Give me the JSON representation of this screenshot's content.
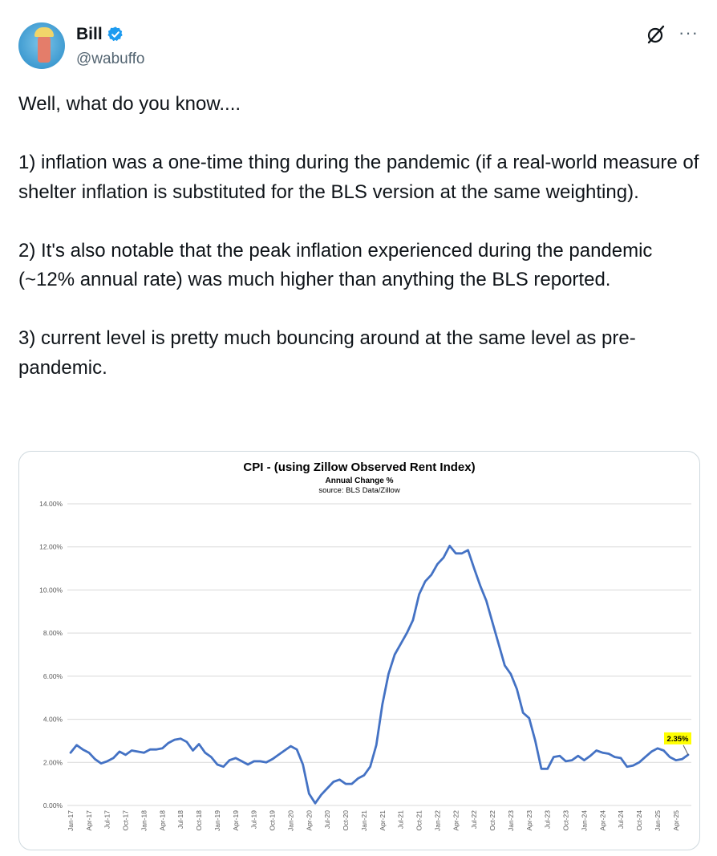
{
  "author": {
    "name": "Bill",
    "handle": "@wabuffo",
    "verified": true,
    "verified_color": "#1d9bf0"
  },
  "toolbar": {
    "grok_icon": "grok-icon",
    "more_label": "···"
  },
  "tweet": {
    "paragraphs": [
      "Well, what do you know....",
      "1) inflation was a one-time thing during the pandemic (if a real-world measure of shelter inflation is substituted for the BLS version at the same weighting).",
      "2) It's also notable that the peak inflation experienced during the pandemic (~12% annual rate) was much higher than anything the BLS reported.",
      "3) current level is pretty much bouncing around at the same level as pre-pandemic."
    ]
  },
  "chart_data": {
    "type": "line",
    "title": "CPI - (using Zillow Observed Rent Index)",
    "subtitle": "Annual Change %",
    "source": "source: BLS Data/Zillow",
    "y_ticks": [
      "0.00%",
      "2.00%",
      "4.00%",
      "6.00%",
      "8.00%",
      "10.00%",
      "12.00%",
      "14.00%"
    ],
    "ylim": [
      0,
      14
    ],
    "x_ticks": [
      "Jan-17",
      "Apr-17",
      "Jul-17",
      "Oct-17",
      "Jan-18",
      "Apr-18",
      "Jul-18",
      "Oct-18",
      "Jan-19",
      "Apr-19",
      "Jul-19",
      "Oct-19",
      "Jan-20",
      "Apr-20",
      "Jul-20",
      "Oct-20",
      "Jan-21",
      "Apr-21",
      "Jul-21",
      "Oct-21",
      "Jan-22",
      "Apr-22",
      "Jul-22",
      "Oct-22",
      "Jan-23",
      "Apr-23",
      "Jul-23",
      "Oct-23",
      "Jan-24",
      "Apr-24",
      "Jul-24",
      "Oct-24",
      "Jan-25",
      "Apr-25"
    ],
    "grid": true,
    "line_color": "#4472c4",
    "label_color": "#ffff00",
    "last_value_label": "2.35%",
    "values": [
      2.45,
      2.8,
      2.6,
      2.45,
      2.15,
      1.95,
      2.05,
      2.2,
      2.5,
      2.35,
      2.55,
      2.5,
      2.45,
      2.6,
      2.6,
      2.65,
      2.9,
      3.05,
      3.1,
      2.95,
      2.55,
      2.85,
      2.45,
      2.25,
      1.9,
      1.8,
      2.1,
      2.2,
      2.05,
      1.9,
      2.05,
      2.05,
      2.0,
      2.15,
      2.35,
      2.55,
      2.75,
      2.6,
      1.9,
      0.55,
      0.1,
      0.5,
      0.8,
      1.1,
      1.2,
      1.0,
      1.0,
      1.25,
      1.4,
      1.8,
      2.8,
      4.7,
      6.1,
      7.0,
      7.5,
      8.0,
      8.6,
      9.8,
      10.4,
      10.7,
      11.2,
      11.5,
      12.05,
      11.7,
      11.7,
      11.85,
      11.0,
      10.2,
      9.5,
      8.5,
      7.5,
      6.5,
      6.1,
      5.4,
      4.3,
      4.05,
      3.0,
      1.7,
      1.7,
      2.25,
      2.3,
      2.05,
      2.1,
      2.3,
      2.1,
      2.3,
      2.55,
      2.45,
      2.4,
      2.25,
      2.2,
      1.8,
      1.85,
      2.0,
      2.25,
      2.5,
      2.65,
      2.55,
      2.25,
      2.1,
      2.15,
      2.35
    ]
  }
}
